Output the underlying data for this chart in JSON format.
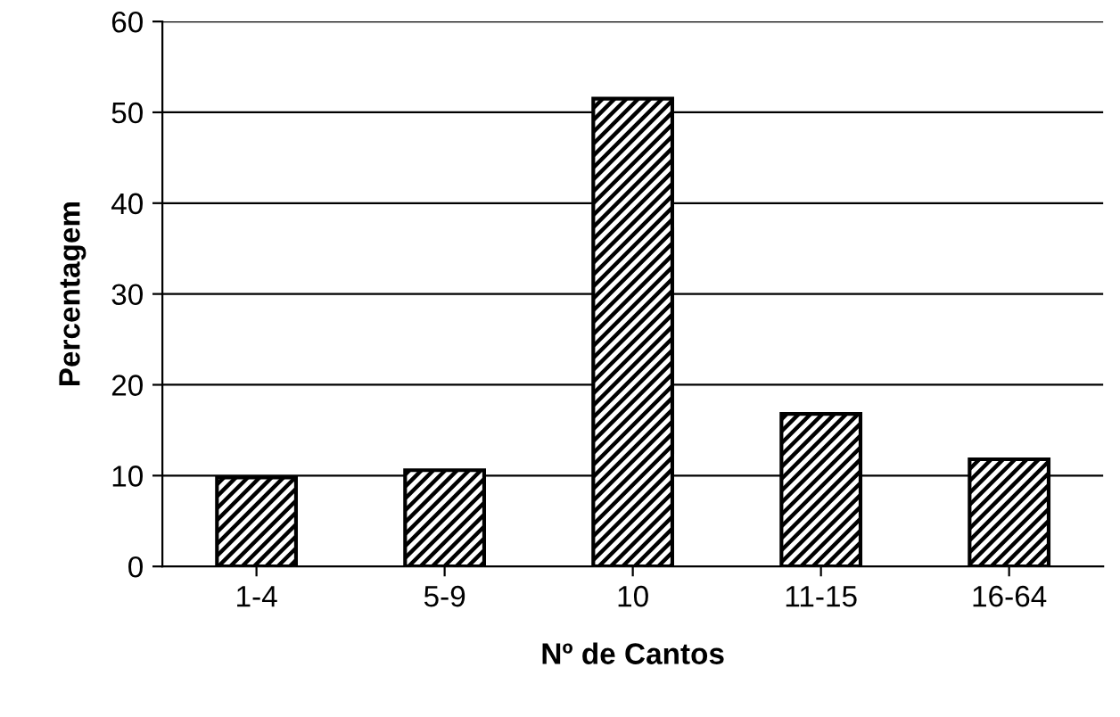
{
  "chart_data": {
    "type": "bar",
    "xlabel": "Nº de Cantos",
    "ylabel": "Percentagem",
    "categories": [
      "1-4",
      "5-9",
      "10",
      "11-15",
      "16-64"
    ],
    "values": [
      9.8,
      10.6,
      51.5,
      16.8,
      11.8
    ],
    "color": "#000000",
    "ylim": [
      0,
      60
    ],
    "yticks": [
      0,
      10,
      20,
      30,
      40,
      50,
      60
    ],
    "grid": "y"
  }
}
